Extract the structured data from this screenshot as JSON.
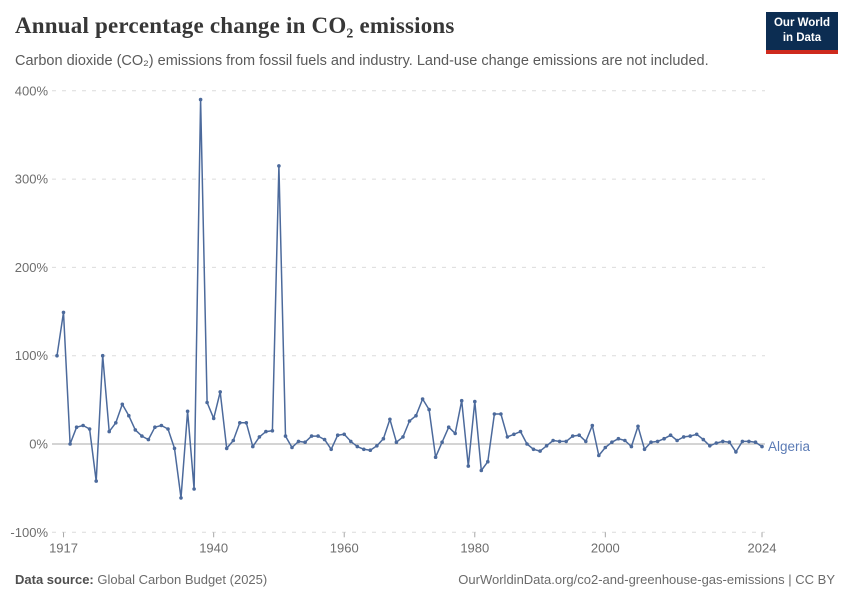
{
  "header": {
    "title": "Annual percentage change in CO₂ emissions",
    "subtitle": "Carbon dioxide (CO₂) emissions from fossil fuels and industry. Land-use change emissions are not included.",
    "logo": {
      "line1": "Our World",
      "line2": "in Data"
    }
  },
  "colors": {
    "line": "#4C6A9C",
    "entity_label": "#5B7BB5",
    "gridline": "#dcdcdc",
    "zero_line": "#a8a8a8",
    "tick": "#a8a8a8",
    "axis_text": "#6e6e6e",
    "logo_navy": "#0C2D52",
    "logo_red": "#CE2A1D"
  },
  "chart_data": {
    "type": "line",
    "title": "Annual percentage change in CO₂ emissions",
    "xlabel": "",
    "ylabel": "",
    "xlim": [
      1916,
      2024
    ],
    "ylim": [
      -100,
      400
    ],
    "yticks": [
      -100,
      0,
      100,
      200,
      300,
      400
    ],
    "ytick_suffix": "%",
    "xticks": [
      1917,
      1940,
      1960,
      1980,
      2000,
      2024
    ],
    "grid": "horizontal-dashed, solid zero line, dashed bottom axis with ticks",
    "legend_position": "end-of-line label",
    "series": [
      {
        "name": "Algeria",
        "x": [
          1916,
          1917,
          1918,
          1919,
          1920,
          1921,
          1922,
          1923,
          1924,
          1925,
          1926,
          1927,
          1928,
          1929,
          1930,
          1931,
          1932,
          1933,
          1934,
          1935,
          1936,
          1937,
          1938,
          1939,
          1940,
          1941,
          1942,
          1943,
          1944,
          1945,
          1946,
          1947,
          1948,
          1949,
          1950,
          1951,
          1952,
          1953,
          1954,
          1955,
          1956,
          1957,
          1958,
          1959,
          1960,
          1961,
          1962,
          1963,
          1964,
          1965,
          1966,
          1967,
          1968,
          1969,
          1970,
          1971,
          1972,
          1973,
          1974,
          1975,
          1976,
          1977,
          1978,
          1979,
          1980,
          1981,
          1982,
          1983,
          1984,
          1985,
          1986,
          1987,
          1988,
          1989,
          1990,
          1991,
          1992,
          1993,
          1994,
          1995,
          1996,
          1997,
          1998,
          1999,
          2000,
          2001,
          2002,
          2003,
          2004,
          2005,
          2006,
          2007,
          2008,
          2009,
          2010,
          2011,
          2012,
          2013,
          2014,
          2015,
          2016,
          2017,
          2018,
          2019,
          2020,
          2021,
          2022,
          2023,
          2024
        ],
        "values": [
          100,
          149,
          0,
          19,
          21,
          17,
          -42,
          100,
          14,
          24,
          45,
          32,
          16,
          9,
          5,
          19,
          21,
          17,
          -5,
          -61,
          37,
          -51,
          390,
          47,
          29,
          59,
          -5,
          4,
          24,
          24,
          -3,
          8,
          14,
          15,
          315,
          9,
          -4,
          3,
          2,
          9,
          9,
          5,
          -6,
          10,
          11,
          3,
          -3,
          -6,
          -7,
          -2,
          6,
          28,
          2,
          8,
          26,
          32,
          51,
          39,
          -15,
          2,
          19,
          12,
          49,
          -25,
          48,
          -30,
          -20,
          34,
          34,
          8,
          11,
          14,
          0,
          -6,
          -8,
          -2,
          4,
          3,
          3,
          9,
          10,
          3,
          21,
          -13,
          -4,
          2,
          6,
          4,
          -3,
          20,
          -6,
          2,
          3,
          6,
          10,
          4,
          8,
          9,
          11,
          5,
          -2,
          1,
          3,
          2,
          -9,
          3,
          3,
          2,
          -3
        ]
      }
    ]
  },
  "footer": {
    "source_label": "Data source:",
    "source_value": "Global Carbon Budget (2025)",
    "credit": "OurWorldinData.org/co2-and-greenhouse-gas-emissions | CC BY"
  }
}
